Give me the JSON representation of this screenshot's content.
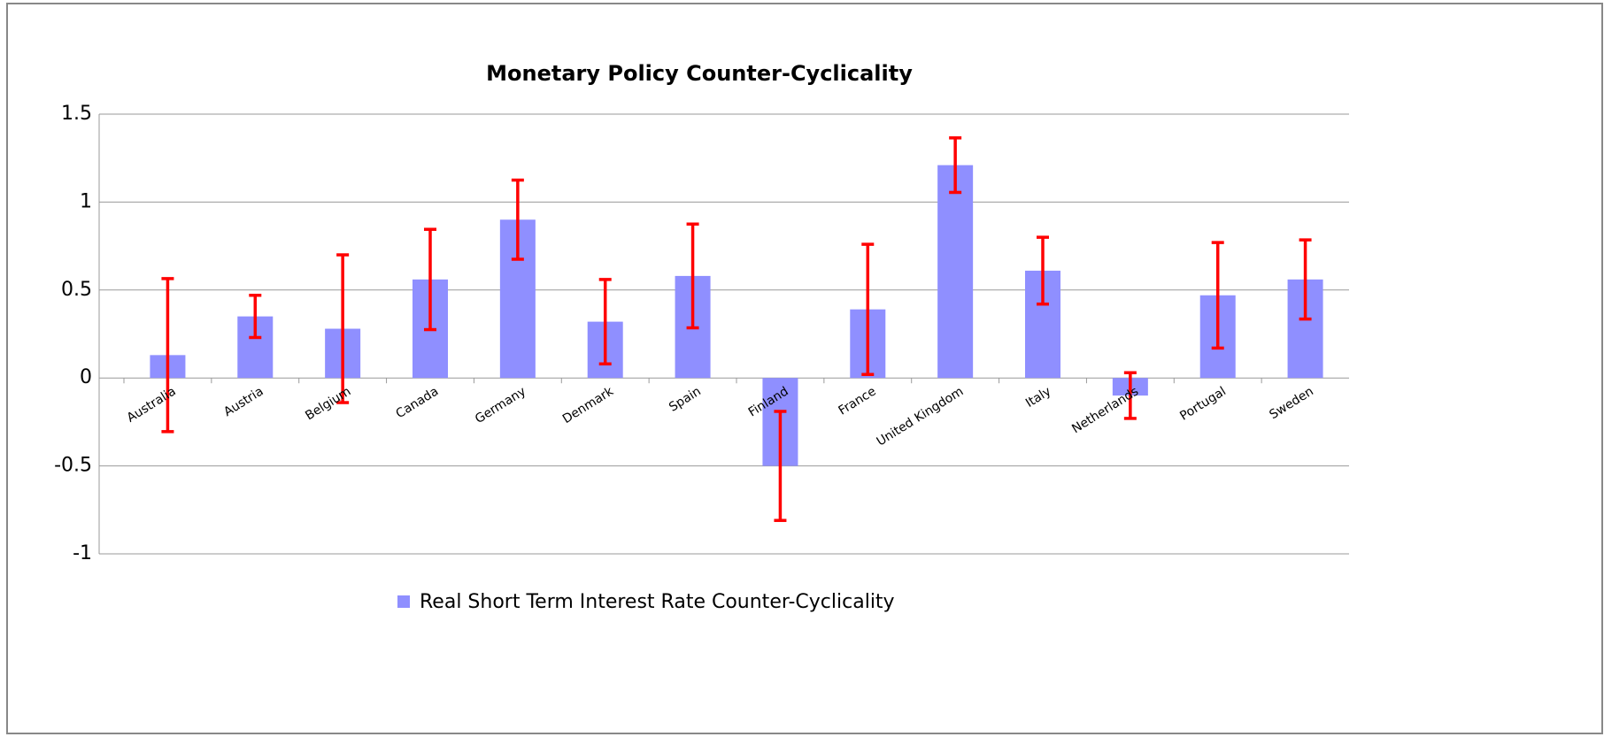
{
  "chart_data": {
    "type": "bar",
    "title": "Monetary Policy Counter-Cyclicality",
    "categories": [
      "Australia",
      "Austria",
      "Belgium",
      "Canada",
      "Germany",
      "Denmark",
      "Spain",
      "Finland",
      "France",
      "United Kingdom",
      "Italy",
      "Netherlands",
      "Portugal",
      "Sweden"
    ],
    "series": [
      {
        "name": "Real Short Term Interest Rate Counter-Cyclicality",
        "color": "#8f8fff",
        "values": [
          0.13,
          0.35,
          0.28,
          0.56,
          0.9,
          0.32,
          0.58,
          -0.5,
          0.39,
          1.21,
          0.61,
          -0.1,
          0.47,
          0.56
        ],
        "errors": [
          0.435,
          0.12,
          0.42,
          0.285,
          0.225,
          0.24,
          0.295,
          0.31,
          0.37,
          0.155,
          0.19,
          0.13,
          0.3,
          0.225
        ],
        "error_color": "#ff0000"
      }
    ],
    "ylim": [
      -1,
      1.5
    ],
    "yticks": [
      -1,
      -0.5,
      0,
      0.5,
      1,
      1.5
    ],
    "grid": true
  }
}
